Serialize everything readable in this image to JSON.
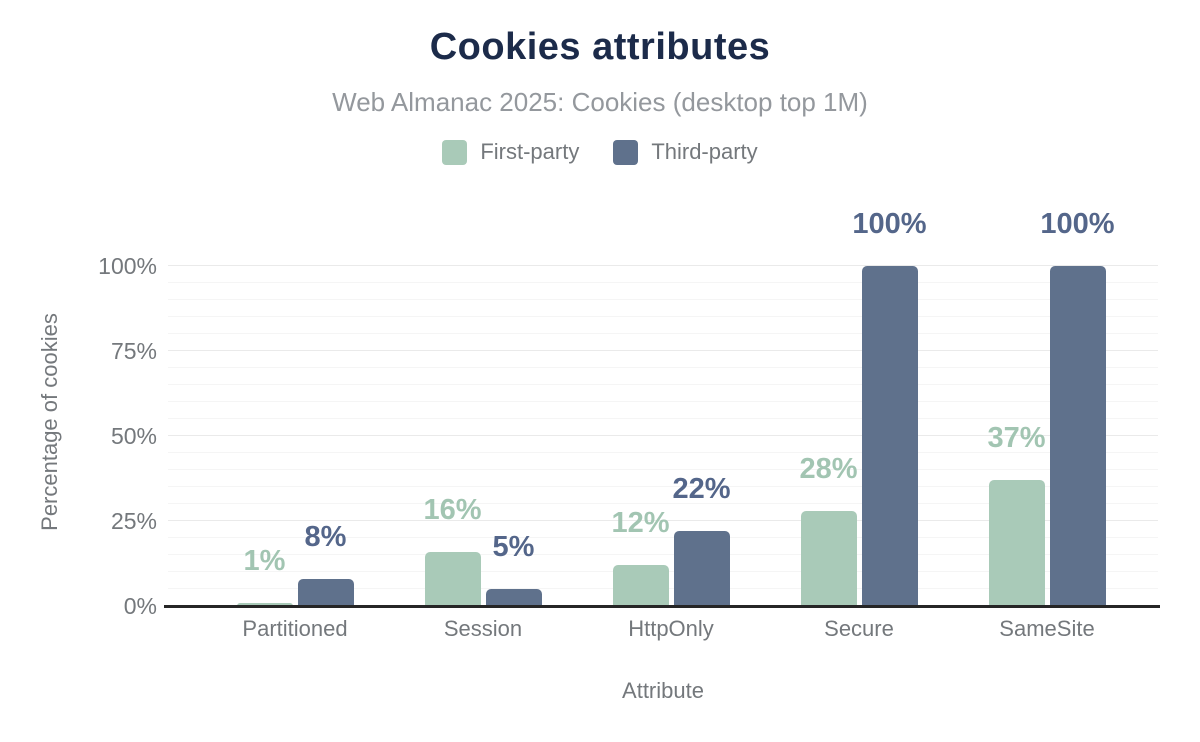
{
  "chart_data": {
    "type": "bar",
    "title": "Cookies attributes",
    "subtitle": "Web Almanac 2025: Cookies (desktop top 1M)",
    "xlabel": "Attribute",
    "ylabel": "Percentage of cookies",
    "categories": [
      "Partitioned",
      "Session",
      "HttpOnly",
      "Secure",
      "SameSite"
    ],
    "series": [
      {
        "name": "First-party",
        "color": "#a9cab8",
        "label_color": "#a2c5b2",
        "values": [
          1,
          16,
          12,
          28,
          37
        ]
      },
      {
        "name": "Third-party",
        "color": "#5f718c",
        "label_color": "#54668a",
        "values": [
          8,
          5,
          22,
          100,
          100
        ]
      }
    ],
    "value_suffix": "%",
    "y_ticks": [
      {
        "label": "0%",
        "value": 0
      },
      {
        "label": "25%",
        "value": 25
      },
      {
        "label": "50%",
        "value": 50
      },
      {
        "label": "75%",
        "value": 75
      },
      {
        "label": "100%",
        "value": 100
      }
    ],
    "ylim": [
      0,
      100
    ],
    "grid": {
      "on": true,
      "minor_step": 5,
      "major_step": 25
    },
    "legend_position": "top",
    "colors": {
      "title": "#1c2b4a",
      "subtitle": "#94989d",
      "axis_text": "#74787c",
      "axis_line": "#262626"
    }
  }
}
